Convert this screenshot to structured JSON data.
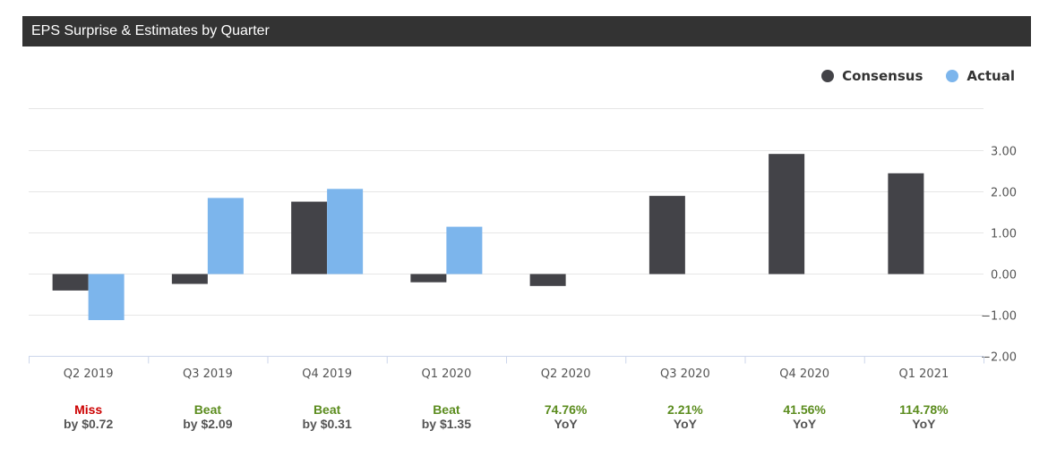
{
  "header": {
    "title": "EPS Surprise & Estimates by Quarter"
  },
  "legend": [
    {
      "label": "Consensus",
      "color": "#434348"
    },
    {
      "label": "Actual",
      "color": "#7cb5ec"
    }
  ],
  "chart_data": {
    "type": "bar",
    "title": "EPS Surprise & Estimates by Quarter",
    "categories": [
      "Q2 2019",
      "Q3 2019",
      "Q4 2019",
      "Q1 2020",
      "Q2 2020",
      "Q3 2020",
      "Q4 2020",
      "Q1 2021"
    ],
    "series": [
      {
        "name": "Consensus",
        "color": "#434348",
        "values": [
          -0.4,
          -0.24,
          1.76,
          -0.2,
          -0.29,
          1.9,
          2.92,
          2.45
        ]
      },
      {
        "name": "Actual",
        "color": "#7cb5ec",
        "values": [
          -1.12,
          1.85,
          2.07,
          1.15,
          null,
          null,
          null,
          null
        ]
      }
    ],
    "y_ticks": [
      "3.00",
      "2.00",
      "1.00",
      "0.00",
      "−1.00",
      "−2.00"
    ],
    "y_tick_values": [
      3,
      2,
      1,
      0,
      -1,
      -2
    ],
    "ylim": [
      -2,
      4
    ],
    "y_axis_side": "right",
    "grid": true,
    "legend_position": "top-right"
  },
  "summaries": [
    {
      "top": "Miss",
      "bottom": "by $0.72",
      "color": "#cc0000"
    },
    {
      "top": "Beat",
      "bottom": "by $2.09",
      "color": "#5b8c1e"
    },
    {
      "top": "Beat",
      "bottom": "by $0.31",
      "color": "#5b8c1e"
    },
    {
      "top": "Beat",
      "bottom": "by $1.35",
      "color": "#5b8c1e"
    },
    {
      "top": "74.76%",
      "bottom": "YoY",
      "color": "#5b8c1e"
    },
    {
      "top": "2.21%",
      "bottom": "YoY",
      "color": "#5b8c1e"
    },
    {
      "top": "41.56%",
      "bottom": "YoY",
      "color": "#5b8c1e"
    },
    {
      "top": "114.78%",
      "bottom": "YoY",
      "color": "#5b8c1e"
    }
  ]
}
